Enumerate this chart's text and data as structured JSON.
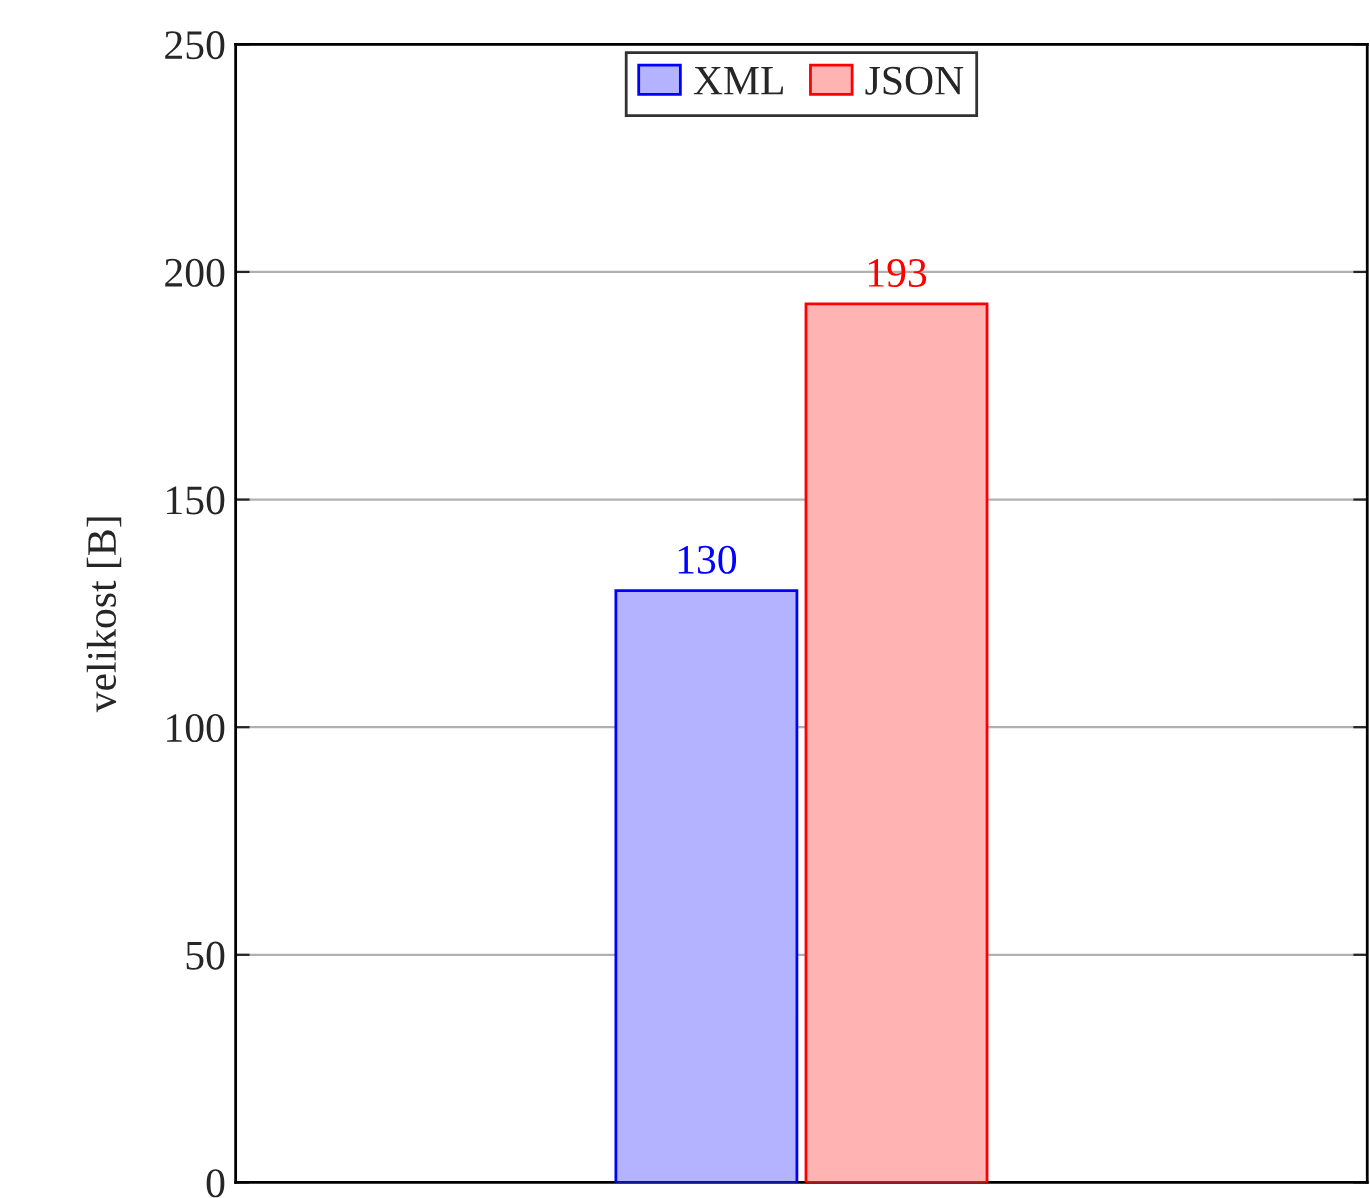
{
  "chart_data": {
    "type": "bar",
    "ylabel": "velikost [B]",
    "categories": [
      null
    ],
    "series": [
      {
        "name": "XML",
        "color": "#b3b3ff",
        "values": [
          130
        ]
      },
      {
        "name": "JSON",
        "color": "#ffb3b3",
        "values": [
          193
        ]
      }
    ],
    "ylim": [
      0,
      250
    ],
    "yticks": [
      0,
      50,
      100,
      150,
      200,
      250
    ],
    "grid": "y",
    "legend": "top",
    "data_labels": true
  }
}
